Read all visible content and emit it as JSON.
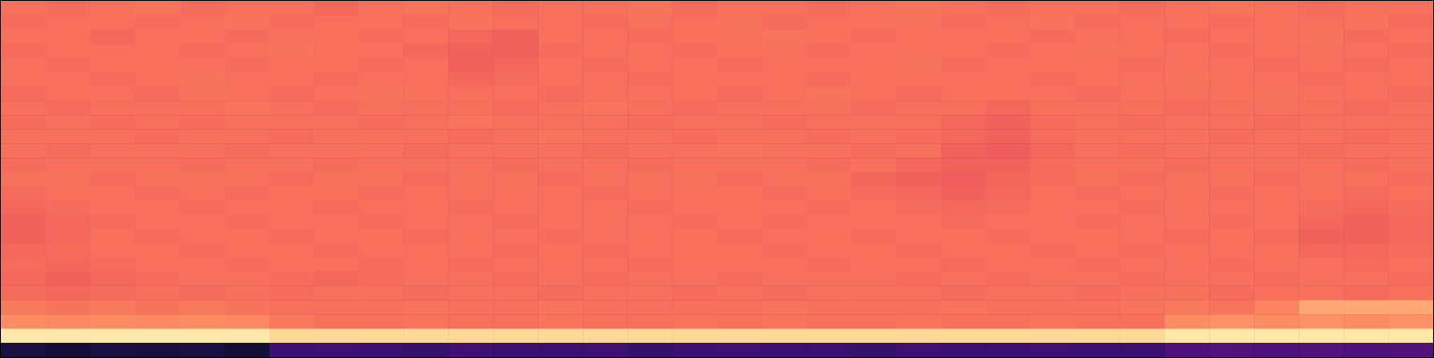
{
  "chart_data": {
    "type": "heatmap",
    "tick_labels": false,
    "zlim": [
      0,
      1
    ],
    "cells": [
      [
        0.7,
        0.69,
        0.7,
        0.71,
        0.69,
        0.7,
        0.7,
        0.68,
        0.7,
        0.71,
        0.7,
        0.69,
        0.7,
        0.7,
        0.71,
        0.69,
        0.7,
        0.7,
        0.69,
        0.7,
        0.71,
        0.7,
        0.69,
        0.7,
        0.7,
        0.69,
        0.7,
        0.71,
        0.7,
        0.69,
        0.7,
        0.7
      ],
      [
        0.69,
        0.7,
        0.7,
        0.69,
        0.7,
        0.71,
        0.69,
        0.7,
        0.7,
        0.69,
        0.71,
        0.7,
        0.7,
        0.69,
        0.7,
        0.7,
        0.71,
        0.69,
        0.7,
        0.7,
        0.7,
        0.69,
        0.7,
        0.71,
        0.69,
        0.7,
        0.7,
        0.69,
        0.7,
        0.7,
        0.71,
        0.69
      ],
      [
        0.7,
        0.7,
        0.68,
        0.7,
        0.7,
        0.69,
        0.7,
        0.7,
        0.69,
        0.7,
        0.68,
        0.67,
        0.7,
        0.7,
        0.69,
        0.7,
        0.7,
        0.71,
        0.7,
        0.69,
        0.7,
        0.7,
        0.7,
        0.69,
        0.7,
        0.7,
        0.69,
        0.7,
        0.7,
        0.71,
        0.69,
        0.7
      ],
      [
        0.69,
        0.7,
        0.7,
        0.7,
        0.69,
        0.7,
        0.71,
        0.7,
        0.7,
        0.68,
        0.67,
        0.67,
        0.69,
        0.7,
        0.7,
        0.69,
        0.7,
        0.7,
        0.69,
        0.7,
        0.7,
        0.7,
        0.69,
        0.7,
        0.71,
        0.7,
        0.7,
        0.69,
        0.7,
        0.7,
        0.7,
        0.69
      ],
      [
        0.7,
        0.69,
        0.7,
        0.7,
        0.7,
        0.69,
        0.7,
        0.7,
        0.69,
        0.7,
        0.67,
        0.68,
        0.7,
        0.69,
        0.7,
        0.7,
        0.69,
        0.7,
        0.7,
        0.7,
        0.71,
        0.69,
        0.7,
        0.7,
        0.7,
        0.69,
        0.7,
        0.7,
        0.69,
        0.7,
        0.69,
        0.7
      ],
      [
        0.7,
        0.7,
        0.69,
        0.7,
        0.71,
        0.7,
        0.7,
        0.69,
        0.7,
        0.7,
        0.68,
        0.69,
        0.7,
        0.7,
        0.69,
        0.7,
        0.7,
        0.7,
        0.69,
        0.7,
        0.7,
        0.7,
        0.7,
        0.69,
        0.7,
        0.7,
        0.71,
        0.7,
        0.7,
        0.69,
        0.7,
        0.7
      ],
      [
        0.69,
        0.7,
        0.7,
        0.69,
        0.7,
        0.7,
        0.69,
        0.7,
        0.71,
        0.7,
        0.7,
        0.7,
        0.69,
        0.7,
        0.7,
        0.7,
        0.69,
        0.7,
        0.71,
        0.7,
        0.69,
        0.7,
        0.7,
        0.7,
        0.69,
        0.7,
        0.7,
        0.7,
        0.71,
        0.7,
        0.7,
        0.69
      ],
      [
        0.7,
        0.69,
        0.7,
        0.7,
        0.7,
        0.71,
        0.7,
        0.69,
        0.7,
        0.7,
        0.7,
        0.69,
        0.7,
        0.71,
        0.7,
        0.69,
        0.7,
        0.7,
        0.7,
        0.69,
        0.7,
        0.7,
        0.68,
        0.7,
        0.7,
        0.7,
        0.69,
        0.7,
        0.7,
        0.7,
        0.69,
        0.7
      ],
      [
        0.69,
        0.7,
        0.69,
        0.7,
        0.69,
        0.7,
        0.7,
        0.7,
        0.69,
        0.7,
        0.71,
        0.7,
        0.7,
        0.7,
        0.69,
        0.7,
        0.7,
        0.69,
        0.7,
        0.7,
        0.7,
        0.68,
        0.67,
        0.69,
        0.7,
        0.69,
        0.7,
        0.7,
        0.69,
        0.7,
        0.7,
        0.7
      ],
      [
        0.7,
        0.7,
        0.7,
        0.69,
        0.7,
        0.7,
        0.69,
        0.7,
        0.7,
        0.7,
        0.69,
        0.7,
        0.71,
        0.7,
        0.7,
        0.69,
        0.7,
        0.7,
        0.69,
        0.7,
        0.69,
        0.68,
        0.67,
        0.69,
        0.7,
        0.7,
        0.7,
        0.69,
        0.7,
        0.7,
        0.69,
        0.7
      ],
      [
        0.7,
        0.69,
        0.7,
        0.7,
        0.7,
        0.69,
        0.7,
        0.7,
        0.7,
        0.69,
        0.7,
        0.7,
        0.7,
        0.69,
        0.7,
        0.7,
        0.71,
        0.7,
        0.7,
        0.69,
        0.7,
        0.67,
        0.66,
        0.68,
        0.7,
        0.69,
        0.7,
        0.7,
        0.7,
        0.69,
        0.7,
        0.7
      ],
      [
        0.69,
        0.7,
        0.7,
        0.7,
        0.69,
        0.7,
        0.7,
        0.69,
        0.7,
        0.7,
        0.7,
        0.69,
        0.7,
        0.7,
        0.69,
        0.7,
        0.7,
        0.7,
        0.69,
        0.7,
        0.68,
        0.67,
        0.67,
        0.69,
        0.7,
        0.7,
        0.69,
        0.7,
        0.7,
        0.7,
        0.69,
        0.7
      ],
      [
        0.7,
        0.7,
        0.69,
        0.7,
        0.7,
        0.7,
        0.69,
        0.7,
        0.7,
        0.69,
        0.7,
        0.7,
        0.69,
        0.7,
        0.7,
        0.7,
        0.69,
        0.7,
        0.7,
        0.68,
        0.67,
        0.66,
        0.68,
        0.69,
        0.7,
        0.69,
        0.7,
        0.7,
        0.69,
        0.7,
        0.7,
        0.69
      ],
      [
        0.69,
        0.7,
        0.7,
        0.69,
        0.7,
        0.69,
        0.7,
        0.7,
        0.69,
        0.7,
        0.7,
        0.7,
        0.7,
        0.69,
        0.7,
        0.7,
        0.7,
        0.69,
        0.7,
        0.69,
        0.68,
        0.67,
        0.68,
        0.7,
        0.69,
        0.7,
        0.7,
        0.69,
        0.7,
        0.7,
        0.69,
        0.7
      ],
      [
        0.68,
        0.69,
        0.7,
        0.7,
        0.69,
        0.7,
        0.7,
        0.69,
        0.7,
        0.7,
        0.69,
        0.7,
        0.7,
        0.7,
        0.69,
        0.7,
        0.7,
        0.7,
        0.69,
        0.7,
        0.69,
        0.68,
        0.69,
        0.7,
        0.7,
        0.69,
        0.7,
        0.7,
        0.7,
        0.69,
        0.68,
        0.69
      ],
      [
        0.67,
        0.68,
        0.69,
        0.7,
        0.7,
        0.69,
        0.7,
        0.7,
        0.69,
        0.7,
        0.7,
        0.69,
        0.7,
        0.7,
        0.7,
        0.69,
        0.7,
        0.69,
        0.7,
        0.7,
        0.7,
        0.69,
        0.7,
        0.7,
        0.69,
        0.7,
        0.7,
        0.69,
        0.7,
        0.68,
        0.67,
        0.68
      ],
      [
        0.67,
        0.68,
        0.7,
        0.69,
        0.7,
        0.7,
        0.69,
        0.7,
        0.7,
        0.69,
        0.7,
        0.7,
        0.69,
        0.7,
        0.7,
        0.7,
        0.69,
        0.7,
        0.7,
        0.69,
        0.7,
        0.7,
        0.69,
        0.7,
        0.7,
        0.7,
        0.69,
        0.7,
        0.69,
        0.67,
        0.67,
        0.68
      ],
      [
        0.68,
        0.69,
        0.7,
        0.7,
        0.69,
        0.7,
        0.7,
        0.69,
        0.7,
        0.7,
        0.7,
        0.69,
        0.7,
        0.69,
        0.7,
        0.7,
        0.7,
        0.69,
        0.7,
        0.7,
        0.69,
        0.7,
        0.7,
        0.69,
        0.7,
        0.69,
        0.7,
        0.7,
        0.7,
        0.68,
        0.68,
        0.69
      ],
      [
        0.69,
        0.68,
        0.69,
        0.7,
        0.7,
        0.69,
        0.7,
        0.7,
        0.69,
        0.7,
        0.69,
        0.7,
        0.7,
        0.7,
        0.69,
        0.7,
        0.7,
        0.7,
        0.69,
        0.7,
        0.7,
        0.69,
        0.7,
        0.7,
        0.69,
        0.7,
        0.7,
        0.69,
        0.7,
        0.7,
        0.69,
        0.7
      ],
      [
        0.68,
        0.67,
        0.68,
        0.69,
        0.7,
        0.7,
        0.69,
        0.68,
        0.69,
        0.7,
        0.7,
        0.69,
        0.7,
        0.69,
        0.7,
        0.7,
        0.69,
        0.7,
        0.7,
        0.7,
        0.69,
        0.7,
        0.69,
        0.7,
        0.7,
        0.69,
        0.7,
        0.7,
        0.69,
        0.7,
        0.7,
        0.69
      ],
      [
        0.69,
        0.68,
        0.69,
        0.7,
        0.69,
        0.7,
        0.69,
        0.7,
        0.7,
        0.69,
        0.7,
        0.7,
        0.69,
        0.7,
        0.7,
        0.69,
        0.7,
        0.69,
        0.7,
        0.7,
        0.7,
        0.69,
        0.7,
        0.7,
        0.69,
        0.7,
        0.7,
        0.69,
        0.7,
        0.7,
        0.69,
        0.7
      ],
      [
        0.72,
        0.71,
        0.72,
        0.71,
        0.72,
        0.71,
        0.7,
        0.7,
        0.7,
        0.71,
        0.7,
        0.7,
        0.71,
        0.7,
        0.7,
        0.7,
        0.7,
        0.71,
        0.7,
        0.7,
        0.7,
        0.71,
        0.7,
        0.7,
        0.7,
        0.71,
        0.72,
        0.71,
        0.74,
        0.82,
        0.82,
        0.82
      ],
      [
        0.76,
        0.75,
        0.76,
        0.75,
        0.76,
        0.75,
        0.72,
        0.7,
        0.7,
        0.71,
        0.7,
        0.7,
        0.71,
        0.7,
        0.7,
        0.71,
        0.7,
        0.71,
        0.7,
        0.7,
        0.71,
        0.7,
        0.7,
        0.71,
        0.7,
        0.7,
        0.76,
        0.77,
        0.76,
        0.77,
        0.76,
        0.77
      ],
      [
        0.95,
        0.95,
        0.95,
        0.95,
        0.95,
        0.95,
        0.92,
        0.92,
        0.92,
        0.92,
        0.92,
        0.92,
        0.92,
        0.92,
        0.92,
        0.92,
        0.92,
        0.92,
        0.92,
        0.92,
        0.92,
        0.92,
        0.92,
        0.92,
        0.92,
        0.92,
        0.95,
        0.95,
        0.95,
        0.95,
        0.95,
        0.95
      ],
      [
        0.12,
        0.1,
        0.12,
        0.11,
        0.12,
        0.1,
        0.2,
        0.21,
        0.2,
        0.19,
        0.21,
        0.2,
        0.2,
        0.21,
        0.19,
        0.2,
        0.21,
        0.2,
        0.2,
        0.19,
        0.21,
        0.2,
        0.2,
        0.21,
        0.2,
        0.2,
        0.24,
        0.25,
        0.24,
        0.25,
        0.24,
        0.25
      ]
    ]
  }
}
